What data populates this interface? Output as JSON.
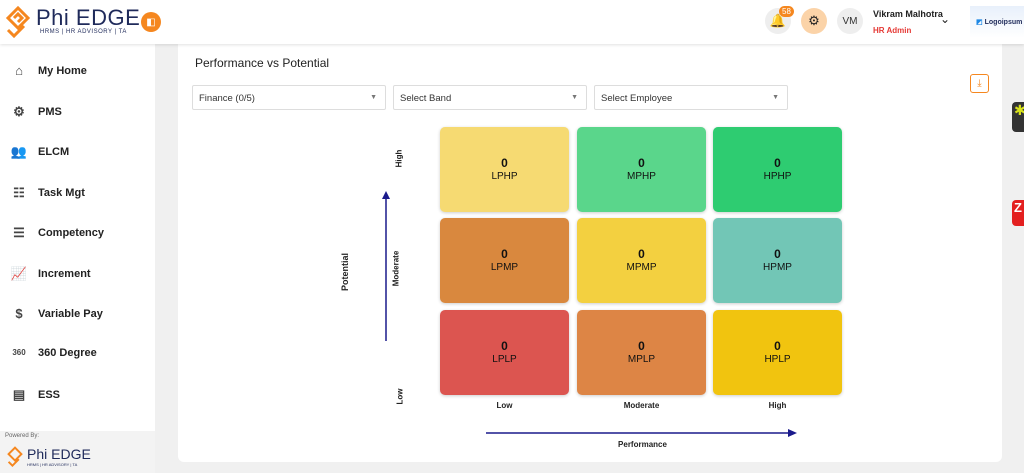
{
  "header": {
    "brand": "Phi EDGE",
    "brand_sub": "HRMS | HR ADVISORY | TA",
    "notification_count": "58",
    "avatar_initials": "VM",
    "user_name": "Vikram Malhotra",
    "user_role": "HR Admin",
    "client_logo": "Logoipsum"
  },
  "sidebar": {
    "items": [
      {
        "label": "My Home",
        "icon": "home-icon"
      },
      {
        "label": "PMS",
        "icon": "pms-icon"
      },
      {
        "label": "ELCM",
        "icon": "users-icon"
      },
      {
        "label": "Task Mgt",
        "icon": "task-icon"
      },
      {
        "label": "Competency",
        "icon": "list-icon"
      },
      {
        "label": "Increment",
        "icon": "chart-line-icon"
      },
      {
        "label": "Variable Pay",
        "icon": "dollar-icon"
      },
      {
        "label": "360 Degree",
        "icon": "360-icon"
      },
      {
        "label": "ESS",
        "icon": "ess-icon"
      }
    ],
    "powered_by": "Powered By:"
  },
  "main": {
    "title": "Performance vs Potential",
    "filters": [
      {
        "value": "Finance (0/5)"
      },
      {
        "value": "Select Band"
      },
      {
        "value": "Select Employee"
      }
    ],
    "y_axis": {
      "label": "Potential",
      "ticks": [
        "High",
        "Moderate",
        "Low"
      ]
    },
    "x_axis": {
      "label": "Performance",
      "ticks": [
        "Low",
        "Moderate",
        "High"
      ]
    },
    "grid": [
      {
        "code": "LPHP",
        "count": "0",
        "color": "#f6da72"
      },
      {
        "code": "MPHP",
        "count": "0",
        "color": "#5ad68b"
      },
      {
        "code": "HPHP",
        "count": "0",
        "color": "#2ecc71"
      },
      {
        "code": "LPMP",
        "count": "0",
        "color": "#d9883e"
      },
      {
        "code": "MPMP",
        "count": "0",
        "color": "#f3d040"
      },
      {
        "code": "HPMP",
        "count": "0",
        "color": "#72c6b6"
      },
      {
        "code": "LPLP",
        "count": "0",
        "color": "#dc5550"
      },
      {
        "code": "MPLP",
        "count": "0",
        "color": "#dd8545"
      },
      {
        "code": "HPLP",
        "count": "0",
        "color": "#f1c40f"
      }
    ]
  },
  "colors": {
    "accent": "#f5871f",
    "axis": "#1a1a8c"
  }
}
